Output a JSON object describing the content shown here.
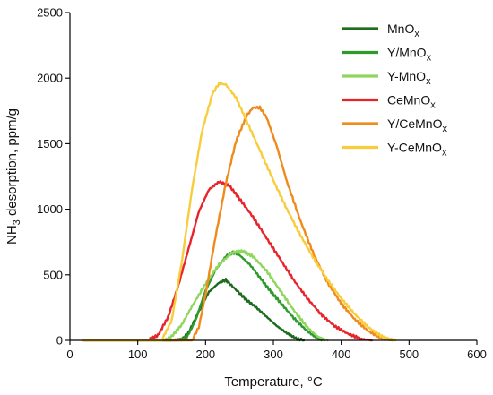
{
  "chart_data": {
    "type": "line",
    "title": "",
    "xlabel": "Temperature, °C",
    "ylabel": {
      "prefix": "NH",
      "sub": "3",
      "suffix": " desorption, ppm/g"
    },
    "xlim": [
      0,
      600
    ],
    "ylim": [
      0,
      2500
    ],
    "x_ticks": [
      0,
      100,
      200,
      300,
      400,
      500,
      600
    ],
    "y_ticks": [
      0,
      500,
      1000,
      1500,
      2000,
      2500
    ],
    "grid": false,
    "legend_position": "top-right",
    "series": [
      {
        "name": "MnO",
        "name_sub": "x",
        "color": "#1d6b1d",
        "x": [
          20,
          150,
          165,
          175,
          190,
          205,
          220,
          230,
          240,
          250,
          260,
          275,
          290,
          305,
          320,
          335,
          345
        ],
        "y": [
          0,
          0,
          5,
          60,
          220,
          370,
          440,
          460,
          410,
          360,
          310,
          250,
          180,
          110,
          55,
          10,
          0
        ]
      },
      {
        "name": "Y/MnO",
        "name_sub": "x",
        "color": "#2e9a2e",
        "x": [
          20,
          160,
          172,
          185,
          200,
          215,
          230,
          240,
          250,
          265,
          280,
          295,
          310,
          330,
          350,
          365,
          375
        ],
        "y": [
          0,
          0,
          20,
          150,
          380,
          540,
          640,
          670,
          650,
          580,
          480,
          380,
          290,
          170,
          70,
          15,
          0
        ]
      },
      {
        "name": "Y-MnO",
        "name_sub": "x",
        "color": "#8fd65c",
        "x": [
          20,
          140,
          150,
          165,
          180,
          200,
          220,
          240,
          255,
          270,
          290,
          310,
          330,
          350,
          365,
          380
        ],
        "y": [
          0,
          0,
          30,
          120,
          260,
          430,
          580,
          670,
          680,
          640,
          530,
          380,
          230,
          100,
          30,
          0
        ]
      },
      {
        "name": "CeMnO",
        "name_sub": "x",
        "color": "#e8242b",
        "x": [
          20,
          115,
          130,
          145,
          160,
          175,
          190,
          205,
          220,
          235,
          250,
          270,
          290,
          310,
          330,
          350,
          370,
          390,
          410,
          430,
          445
        ],
        "y": [
          0,
          0,
          40,
          180,
          420,
          700,
          980,
          1150,
          1210,
          1180,
          1080,
          940,
          780,
          620,
          460,
          320,
          200,
          110,
          50,
          10,
          0
        ]
      },
      {
        "name": "Y/CeMnO",
        "name_sub": "x",
        "color": "#f08a1c",
        "x": [
          20,
          180,
          190,
          200,
          215,
          230,
          245,
          260,
          270,
          280,
          290,
          305,
          320,
          340,
          360,
          380,
          400,
          420,
          440,
          460,
          475
        ],
        "y": [
          0,
          0,
          100,
          350,
          800,
          1200,
          1520,
          1710,
          1775,
          1775,
          1700,
          1480,
          1210,
          910,
          650,
          440,
          280,
          160,
          70,
          15,
          0
        ]
      },
      {
        "name": "Y-CeMnO",
        "name_sub": "x",
        "color": "#f7cd3c",
        "x": [
          20,
          135,
          150,
          165,
          180,
          195,
          210,
          220,
          230,
          245,
          260,
          280,
          300,
          320,
          340,
          360,
          380,
          400,
          420,
          440,
          460,
          480
        ],
        "y": [
          0,
          0,
          150,
          600,
          1150,
          1600,
          1880,
          1960,
          1950,
          1850,
          1680,
          1450,
          1220,
          1000,
          800,
          620,
          460,
          320,
          200,
          100,
          30,
          0
        ]
      }
    ]
  }
}
